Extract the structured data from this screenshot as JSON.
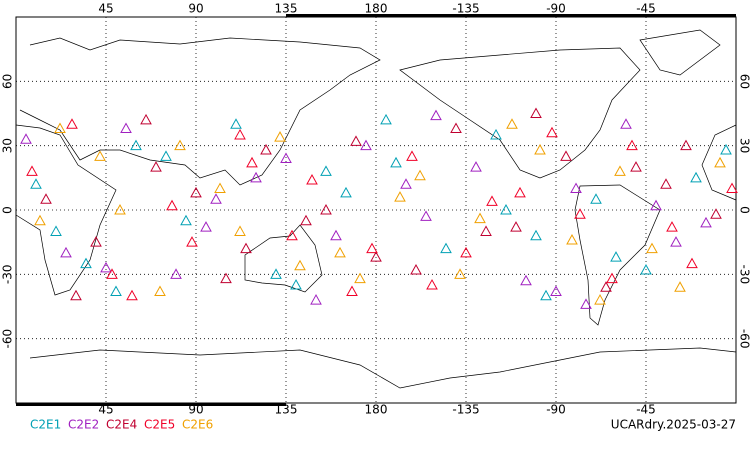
{
  "chart_data": {
    "type": "scatter",
    "xlim": [
      0,
      360
    ],
    "ylim": [
      -90,
      90
    ],
    "xticks": [
      45,
      90,
      135,
      180,
      -135,
      -90,
      -45
    ],
    "yticks": [
      60,
      30,
      0,
      -30,
      -60
    ],
    "grid": true,
    "annotation": "UCARdry.2025-03-27",
    "series": [
      {
        "name": "C2E1",
        "color": "#00a0b4",
        "x": [
          10,
          35,
          60,
          85,
          110,
          140,
          165,
          190,
          215,
          240,
          265,
          290,
          315,
          340,
          20,
          75,
          130,
          185,
          245,
          300,
          355,
          50,
          155,
          260
        ],
        "values": [
          12,
          -25,
          30,
          -5,
          40,
          -35,
          8,
          22,
          -18,
          35,
          -40,
          5,
          -28,
          15,
          -10,
          25,
          -30,
          42,
          0,
          -22,
          28,
          -38,
          18,
          -12
        ]
      },
      {
        "name": "C2E2",
        "color": "#a020c0",
        "x": [
          25,
          55,
          95,
          120,
          150,
          175,
          205,
          230,
          255,
          280,
          305,
          330,
          5,
          45,
          100,
          160,
          210,
          270,
          320,
          80,
          195,
          345,
          135,
          285
        ],
        "values": [
          -20,
          38,
          -8,
          15,
          -42,
          30,
          -3,
          20,
          -33,
          10,
          40,
          -15,
          33,
          -27,
          5,
          -12,
          44,
          -38,
          2,
          -30,
          12,
          -6,
          24,
          -44
        ]
      },
      {
        "name": "C2E4",
        "color": "#c00030",
        "x": [
          15,
          40,
          70,
          105,
          125,
          155,
          180,
          220,
          250,
          275,
          295,
          325,
          350,
          65,
          115,
          170,
          235,
          310,
          30,
          90,
          200,
          260,
          145,
          335
        ],
        "values": [
          5,
          -15,
          20,
          -32,
          28,
          0,
          -22,
          38,
          -8,
          25,
          -36,
          12,
          -2,
          42,
          -18,
          32,
          -10,
          20,
          -40,
          8,
          -28,
          45,
          -5,
          30
        ]
      },
      {
        "name": "C2E5",
        "color": "#f00028",
        "x": [
          8,
          48,
          78,
          112,
          138,
          168,
          198,
          225,
          252,
          282,
          308,
          338,
          28,
          88,
          148,
          208,
          268,
          328,
          58,
          118,
          178,
          238,
          298,
          358
        ],
        "values": [
          18,
          -30,
          2,
          35,
          -12,
          -38,
          25,
          -20,
          8,
          -2,
          30,
          -25,
          40,
          -15,
          14,
          -35,
          36,
          -8,
          -40,
          22,
          -18,
          4,
          -32,
          10
        ]
      },
      {
        "name": "C2E6",
        "color": "#f0a000",
        "x": [
          12,
          42,
          72,
          102,
          132,
          162,
          192,
          222,
          248,
          278,
          302,
          332,
          52,
          82,
          142,
          202,
          232,
          292,
          352,
          22,
          112,
          172,
          262,
          318
        ],
        "values": [
          -5,
          25,
          -38,
          10,
          34,
          -20,
          6,
          -30,
          40,
          -14,
          18,
          -36,
          0,
          30,
          -26,
          16,
          -4,
          -42,
          22,
          38,
          -10,
          -32,
          28,
          -18
        ]
      }
    ]
  }
}
